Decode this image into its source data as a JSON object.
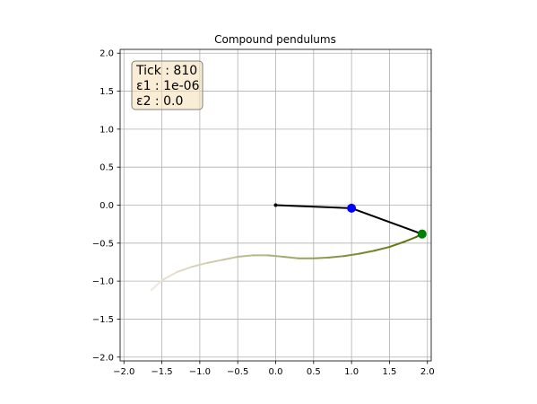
{
  "chart_data": {
    "type": "line",
    "title": "Compound pendulums",
    "xlabel": "",
    "ylabel": "",
    "xlim": [
      -2.05,
      2.05
    ],
    "ylim": [
      -2.05,
      2.05
    ],
    "xticks": [
      -2.0,
      -1.5,
      -1.0,
      -0.5,
      0.0,
      0.5,
      1.0,
      1.5,
      2.0
    ],
    "xtick_labels": [
      "−2.0",
      "−1.5",
      "−1.0",
      "−0.5",
      "0.0",
      "0.5",
      "1.0",
      "1.5",
      "2.0"
    ],
    "yticks": [
      2.0,
      1.5,
      1.0,
      0.5,
      0.0,
      -0.5,
      -1.0,
      -1.5,
      -2.0
    ],
    "ytick_labels": [
      "2.0",
      "1.5",
      "1.0",
      "0.5",
      "0.0",
      "−0.5",
      "−1.0",
      "−1.5",
      "−2.0"
    ],
    "grid": true,
    "info_box": {
      "lines": [
        "Tick : 810",
        "ε1 : 1e-06",
        "ε2 : 0.0"
      ],
      "placement": "top-left"
    },
    "pivot": {
      "x": 0.0,
      "y": 0.0
    },
    "bob1": {
      "x": 1.0,
      "y": -0.04,
      "color": "#0000ff"
    },
    "bob2": {
      "x": 1.93,
      "y": -0.38,
      "color": "#008000"
    },
    "rod_color": "#000000",
    "trace": {
      "x": [
        -1.64,
        -1.5,
        -1.3,
        -1.1,
        -0.9,
        -0.7,
        -0.5,
        -0.3,
        -0.1,
        0.1,
        0.3,
        0.5,
        0.7,
        0.9,
        1.1,
        1.3,
        1.5,
        1.7,
        1.85,
        1.93
      ],
      "y": [
        -1.12,
        -0.99,
        -0.88,
        -0.81,
        -0.76,
        -0.72,
        -0.68,
        -0.66,
        -0.66,
        -0.68,
        -0.7,
        -0.7,
        -0.69,
        -0.67,
        -0.64,
        -0.6,
        -0.55,
        -0.48,
        -0.42,
        -0.38
      ],
      "color_start": "#efe6dc",
      "color_end": "#556b00"
    }
  }
}
